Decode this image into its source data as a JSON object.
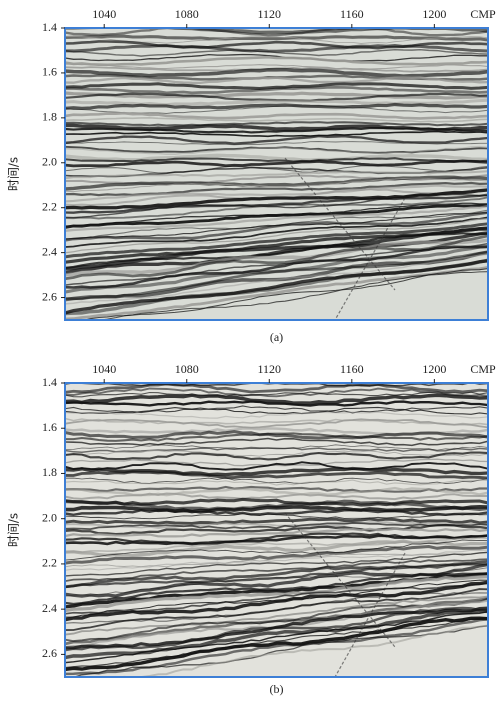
{
  "panels": [
    {
      "caption": "(a)",
      "x_label": "CMP",
      "y_label": "时间/s",
      "xlim": [
        1021,
        1226
      ],
      "xticks": [
        1040,
        1080,
        1120,
        1160,
        1200
      ],
      "ylim": [
        1.4,
        2.7
      ],
      "yticks": [
        1.4,
        1.6,
        1.8,
        {
          "value": 2,
          "label": "2.0"
        },
        2.2,
        2.4,
        2.6
      ]
    },
    {
      "caption": "(b)",
      "x_label": "CMP",
      "y_label": "时间/s",
      "xlim": [
        1021,
        1226
      ],
      "xticks": [
        1040,
        1080,
        1120,
        1160,
        1200
      ],
      "ylim": [
        1.4,
        2.7
      ],
      "yticks": [
        1.4,
        1.6,
        1.8,
        {
          "value": 2,
          "label": "2.0"
        },
        2.2,
        2.4,
        2.6
      ]
    }
  ]
}
